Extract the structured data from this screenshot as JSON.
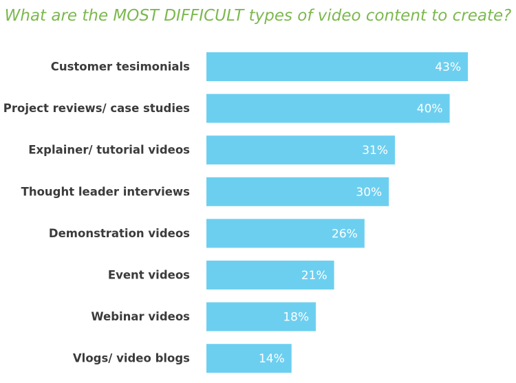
{
  "chart_data": {
    "type": "bar",
    "orientation": "horizontal",
    "title": "What are the MOST DIFFICULT types of video content to create?",
    "categories": [
      "Customer tesimonials",
      "Project reviews/ case studies",
      "Explainer/ tutorial videos",
      "Thought leader interviews",
      "Demonstration videos",
      "Event videos",
      "Webinar videos",
      "Vlogs/ video blogs"
    ],
    "values": [
      43,
      40,
      31,
      30,
      26,
      21,
      18,
      14
    ],
    "value_labels": [
      "43%",
      "40%",
      "31%",
      "30%",
      "26%",
      "21%",
      "18%",
      "14%"
    ],
    "color": "#6dcff0"
  }
}
